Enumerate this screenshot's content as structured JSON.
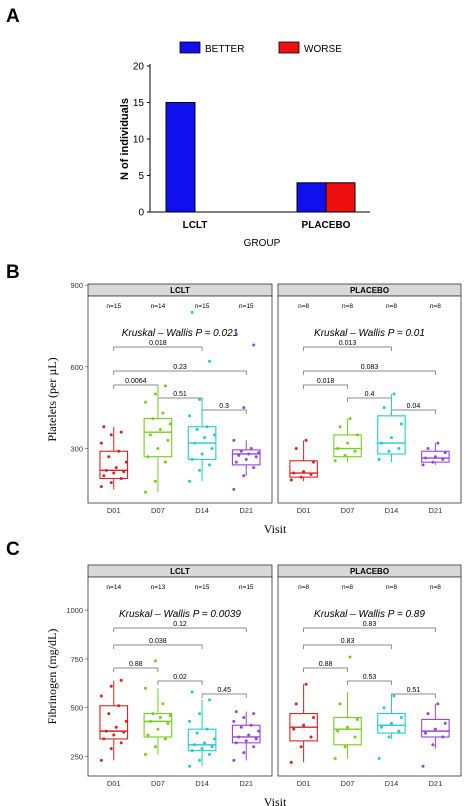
{
  "panels": {
    "A": "A",
    "B": "B",
    "C": "C"
  },
  "chart_data": [
    {
      "id": "A",
      "type": "bar",
      "categories": [
        "LCLT",
        "PLACEBO"
      ],
      "series": [
        {
          "name": "BETTER",
          "values": [
            15,
            4
          ],
          "color": "#1010ee"
        },
        {
          "name": "WORSE",
          "values": [
            0,
            4
          ],
          "color": "#ee1010"
        }
      ],
      "xlabel": "GROUP",
      "ylabel": "N of individuals",
      "ylim": [
        0,
        20
      ],
      "yticks": [
        0,
        5,
        10,
        15,
        20
      ],
      "legend_position": "top",
      "grid": false
    },
    {
      "id": "B",
      "type": "box",
      "xlabel": "Visit",
      "ylabel": "Platelets (per µL)",
      "ylim": [
        100,
        860
      ],
      "yticks": [
        300,
        600,
        900
      ],
      "categories": [
        "D01",
        "D07",
        "D14",
        "D21"
      ],
      "colors": [
        "#dd2222",
        "#77cc22",
        "#22cccc",
        "#9944dd"
      ],
      "facets": [
        {
          "title": "LCLT",
          "n_labels": [
            "n=15",
            "n=14",
            "n=15",
            "n=15"
          ],
          "test_label": "Kruskal – Wallis P = 0.021",
          "boxes": [
            {
              "q1": 190,
              "median": 220,
              "q3": 290,
              "whisker_low": 150,
              "whisker_high": 380,
              "points": [
                160,
                175,
                190,
                200,
                210,
                215,
                220,
                230,
                250,
                270,
                290,
                320,
                350,
                360,
                380
              ]
            },
            {
              "q1": 270,
              "median": 360,
              "q3": 410,
              "whisker_low": 140,
              "whisker_high": 530,
              "points": [
                140,
                180,
                250,
                270,
                300,
                330,
                350,
                370,
                390,
                410,
                430,
                470,
                500,
                530
              ]
            },
            {
              "q1": 260,
              "median": 320,
              "q3": 380,
              "whisker_low": 180,
              "whisker_high": 480,
              "points": [
                180,
                220,
                240,
                260,
                280,
                300,
                320,
                340,
                350,
                370,
                380,
                420,
                480,
                620,
                800
              ]
            },
            {
              "q1": 240,
              "median": 280,
              "q3": 295,
              "whisker_low": 200,
              "whisker_high": 330,
              "points": [
                150,
                200,
                230,
                250,
                260,
                270,
                275,
                280,
                285,
                290,
                300,
                330,
                450,
                680,
                720
              ]
            }
          ],
          "comparisons": [
            {
              "from": 0,
              "to": 2,
              "p": "0.018"
            },
            {
              "from": 0,
              "to": 3,
              "p": "0.23"
            },
            {
              "from": 0,
              "to": 1,
              "p": "0.0064"
            },
            {
              "from": 1,
              "to": 2,
              "p": "0.51"
            },
            {
              "from": 2,
              "to": 3,
              "p": "0.3"
            }
          ]
        },
        {
          "title": "PLACEBO",
          "n_labels": [
            "n=8",
            "n=8",
            "n=8",
            "n=8"
          ],
          "test_label": "Kruskal – Wallis P = 0.01",
          "boxes": [
            {
              "q1": 195,
              "median": 210,
              "q3": 255,
              "whisker_low": 180,
              "whisker_high": 330,
              "points": [
                185,
                195,
                205,
                210,
                215,
                250,
                300,
                330
              ]
            },
            {
              "q1": 270,
              "median": 300,
              "q3": 350,
              "whisker_low": 250,
              "whisker_high": 410,
              "points": [
                255,
                275,
                290,
                300,
                320,
                350,
                380,
                410
              ]
            },
            {
              "q1": 280,
              "median": 320,
              "q3": 420,
              "whisker_low": 250,
              "whisker_high": 500,
              "points": [
                260,
                290,
                300,
                320,
                340,
                390,
                450,
                500
              ]
            },
            {
              "q1": 250,
              "median": 265,
              "q3": 290,
              "whisker_low": 240,
              "whisker_high": 320,
              "points": [
                240,
                250,
                260,
                265,
                270,
                285,
                300,
                320
              ]
            }
          ],
          "comparisons": [
            {
              "from": 0,
              "to": 2,
              "p": "0.013"
            },
            {
              "from": 0,
              "to": 3,
              "p": "0.083"
            },
            {
              "from": 0,
              "to": 1,
              "p": "0.018"
            },
            {
              "from": 1,
              "to": 2,
              "p": "0.4"
            },
            {
              "from": 2,
              "to": 3,
              "p": "0.04"
            }
          ]
        }
      ]
    },
    {
      "id": "C",
      "type": "box",
      "xlabel": "Visit",
      "ylabel": "Fibrinogen (mg/dL)",
      "ylim": [
        150,
        1170
      ],
      "yticks": [
        250,
        500,
        750,
        1000
      ],
      "categories": [
        "D01",
        "D07",
        "D14",
        "D21"
      ],
      "colors": [
        "#dd2222",
        "#77cc22",
        "#22cccc",
        "#9944dd"
      ],
      "facets": [
        {
          "title": "LCLT",
          "n_labels": [
            "n=14",
            "n=13",
            "n=15",
            "n=15"
          ],
          "test_label": "Kruskal – Wallis P = 0.0039",
          "boxes": [
            {
              "q1": 340,
              "median": 380,
              "q3": 510,
              "whisker_low": 230,
              "whisker_high": 640,
              "points": [
                230,
                290,
                320,
                340,
                360,
                375,
                380,
                400,
                430,
                470,
                510,
                560,
                610,
                640
              ]
            },
            {
              "q1": 350,
              "median": 430,
              "q3": 470,
              "whisker_low": 260,
              "whisker_high": 600,
              "points": [
                260,
                300,
                340,
                360,
                390,
                420,
                430,
                450,
                460,
                470,
                520,
                600,
                740
              ]
            },
            {
              "q1": 280,
              "median": 310,
              "q3": 390,
              "whisker_low": 200,
              "whisker_high": 540,
              "points": [
                200,
                230,
                260,
                280,
                290,
                300,
                310,
                320,
                340,
                370,
                390,
                430,
                470,
                540,
                580
              ]
            },
            {
              "q1": 320,
              "median": 350,
              "q3": 410,
              "whisker_low": 230,
              "whisker_high": 480,
              "points": [
                230,
                270,
                300,
                320,
                330,
                340,
                350,
                360,
                380,
                400,
                410,
                430,
                450,
                470,
                480
              ]
            }
          ],
          "comparisons": [
            {
              "from": 0,
              "to": 3,
              "p": "0.12"
            },
            {
              "from": 0,
              "to": 2,
              "p": "0.038"
            },
            {
              "from": 0,
              "to": 1,
              "p": "0.88"
            },
            {
              "from": 1,
              "to": 2,
              "p": "0.02"
            },
            {
              "from": 2,
              "to": 3,
              "p": "0.45"
            }
          ]
        },
        {
          "title": "PLACEBO",
          "n_labels": [
            "n=8",
            "n=8",
            "n=8",
            "n=8"
          ],
          "test_label": "Kruskal – Wallis P = 0.89",
          "boxes": [
            {
              "q1": 330,
              "median": 400,
              "q3": 470,
              "whisker_low": 220,
              "whisker_high": 620,
              "points": [
                220,
                300,
                350,
                390,
                410,
                450,
                520,
                620
              ]
            },
            {
              "q1": 310,
              "median": 390,
              "q3": 450,
              "whisker_low": 240,
              "whisker_high": 580,
              "points": [
                240,
                300,
                350,
                380,
                400,
                440,
                520,
                760
              ]
            },
            {
              "q1": 370,
              "median": 410,
              "q3": 470,
              "whisker_low": 340,
              "whisker_high": 560,
              "points": [
                240,
                350,
                380,
                400,
                420,
                450,
                500,
                560
              ]
            },
            {
              "q1": 350,
              "median": 380,
              "q3": 440,
              "whisker_low": 290,
              "whisker_high": 520,
              "points": [
                200,
                310,
                350,
                370,
                390,
                420,
                470,
                520
              ]
            }
          ],
          "comparisons": [
            {
              "from": 0,
              "to": 3,
              "p": "0.83"
            },
            {
              "from": 0,
              "to": 2,
              "p": "0.83"
            },
            {
              "from": 0,
              "to": 1,
              "p": "0.88"
            },
            {
              "from": 1,
              "to": 2,
              "p": "0.53"
            },
            {
              "from": 2,
              "to": 3,
              "p": "0.51"
            }
          ]
        }
      ]
    }
  ]
}
